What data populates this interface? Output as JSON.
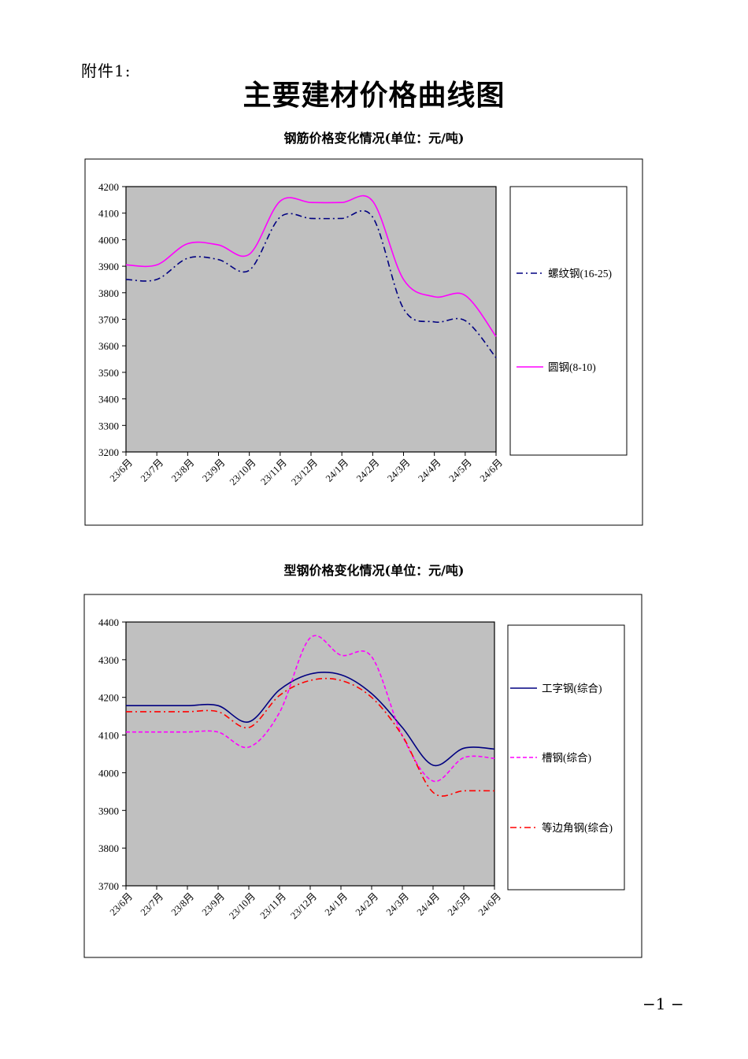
{
  "page": {
    "attachment_label": "附件1:",
    "main_title": "主要建材价格曲线图",
    "page_number": "−1 −"
  },
  "chart_data": [
    {
      "type": "line",
      "title": "钢筋价格变化情况(单位：元/吨)",
      "categories": [
        "23/6月",
        "23/7月",
        "23/8月",
        "23/9月",
        "23/10月",
        "23/11月",
        "23/12月",
        "24/1月",
        "24/2月",
        "24/3月",
        "24/4月",
        "24/5月",
        "24/6月"
      ],
      "ylim": [
        3200,
        4200
      ],
      "yticks": [
        3200,
        3300,
        3400,
        3500,
        3600,
        3700,
        3800,
        3900,
        4000,
        4100,
        4200
      ],
      "plot_background": "#c0c0c0",
      "legend_position": "right",
      "series": [
        {
          "name": "螺纹钢(16-25)",
          "color": "#000080",
          "dash": "dash-dot",
          "values": [
            3850,
            3850,
            3930,
            3925,
            3885,
            4085,
            4080,
            4080,
            4085,
            3740,
            3690,
            3695,
            3555
          ]
        },
        {
          "name": "圆钢(8-10)",
          "color": "#ff00ff",
          "dash": "solid",
          "values": [
            3905,
            3905,
            3985,
            3980,
            3945,
            4145,
            4140,
            4140,
            4145,
            3850,
            3785,
            3790,
            3635
          ]
        }
      ]
    },
    {
      "type": "line",
      "title": "型钢价格变化情况(单位：元/吨)",
      "categories": [
        "23/6月",
        "23/7月",
        "23/8月",
        "23/9月",
        "23/10月",
        "23/11月",
        "23/12月",
        "24/1月",
        "24/2月",
        "24/3月",
        "24/4月",
        "24/5月",
        "24/6月"
      ],
      "ylim": [
        3700,
        4400
      ],
      "yticks": [
        3700,
        3800,
        3900,
        4000,
        4100,
        4200,
        4300,
        4400
      ],
      "plot_background": "#c0c0c0",
      "legend_position": "right",
      "series": [
        {
          "name": "工字钢(综合)",
          "color": "#000080",
          "dash": "solid",
          "values": [
            4178,
            4178,
            4178,
            4178,
            4135,
            4220,
            4262,
            4260,
            4210,
            4120,
            4020,
            4065,
            4063
          ]
        },
        {
          "name": "槽钢(综合)",
          "color": "#ff00ff",
          "dash": "dash",
          "values": [
            4108,
            4108,
            4108,
            4108,
            4068,
            4160,
            4358,
            4312,
            4308,
            4098,
            3978,
            4040,
            4038
          ]
        },
        {
          "name": "等边角钢(综合)",
          "color": "#ff0000",
          "dash": "dash-dot",
          "values": [
            4162,
            4162,
            4162,
            4162,
            4120,
            4205,
            4245,
            4245,
            4200,
            4098,
            3948,
            3952,
            3952
          ]
        }
      ]
    }
  ]
}
